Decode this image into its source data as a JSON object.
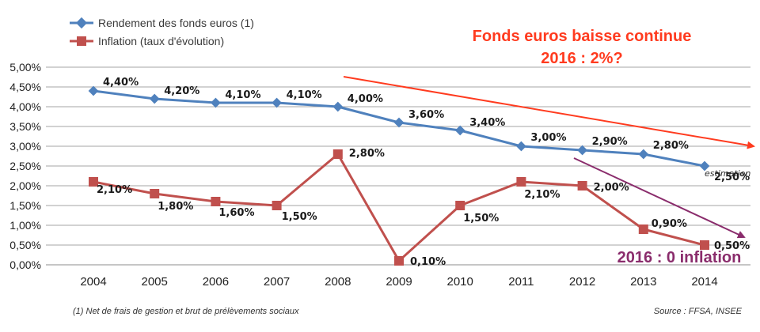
{
  "chart_data": {
    "type": "line",
    "categories": [
      "2004",
      "2005",
      "2006",
      "2007",
      "2008",
      "2009",
      "2010",
      "2011",
      "2012",
      "2013",
      "2014"
    ],
    "ylim": [
      0,
      5
    ],
    "y_ticks": [
      "0,00%",
      "0,50%",
      "1,00%",
      "1,50%",
      "2,00%",
      "2,50%",
      "3,00%",
      "3,50%",
      "4,00%",
      "4,50%",
      "5,00%"
    ],
    "grid": "horizontal",
    "legend_position": "top-left",
    "series": [
      {
        "name": "Rendement des fonds euros (1)",
        "color": "#4f81bd",
        "marker": "diamond",
        "values": [
          4.4,
          4.2,
          4.1,
          4.1,
          4.0,
          3.6,
          3.4,
          3.0,
          2.9,
          2.8,
          2.5
        ],
        "labels": [
          "4,40%",
          "4,20%",
          "4,10%",
          "4,10%",
          "4,00%",
          "3,60%",
          "3,40%",
          "3,00%",
          "2,90%",
          "2,80%",
          "2,50%"
        ]
      },
      {
        "name": "Inflation (taux d'évolution)",
        "color": "#c0504d",
        "marker": "square",
        "values": [
          2.1,
          1.8,
          1.6,
          1.5,
          2.8,
          0.1,
          1.5,
          2.1,
          2.0,
          0.9,
          0.5
        ],
        "labels": [
          "2,10%",
          "1,80%",
          "1,60%",
          "1,50%",
          "2,80%",
          "0,10%",
          "1,50%",
          "2,10%",
          "2,00%",
          "0,90%",
          "0,50%"
        ]
      }
    ],
    "point_annotation": "estimation",
    "annotations": {
      "top_line1": "Fonds euros baisse continue",
      "top_line2": "2016 : 2%?",
      "bottom": "2016 : 0 inflation",
      "top_color": "#ff3b1f",
      "bottom_color": "#8a2c6c"
    },
    "footnote": "(1) Net de frais de gestion et brut de prélèvements sociaux",
    "source": "Source : FFSA, INSEE"
  }
}
